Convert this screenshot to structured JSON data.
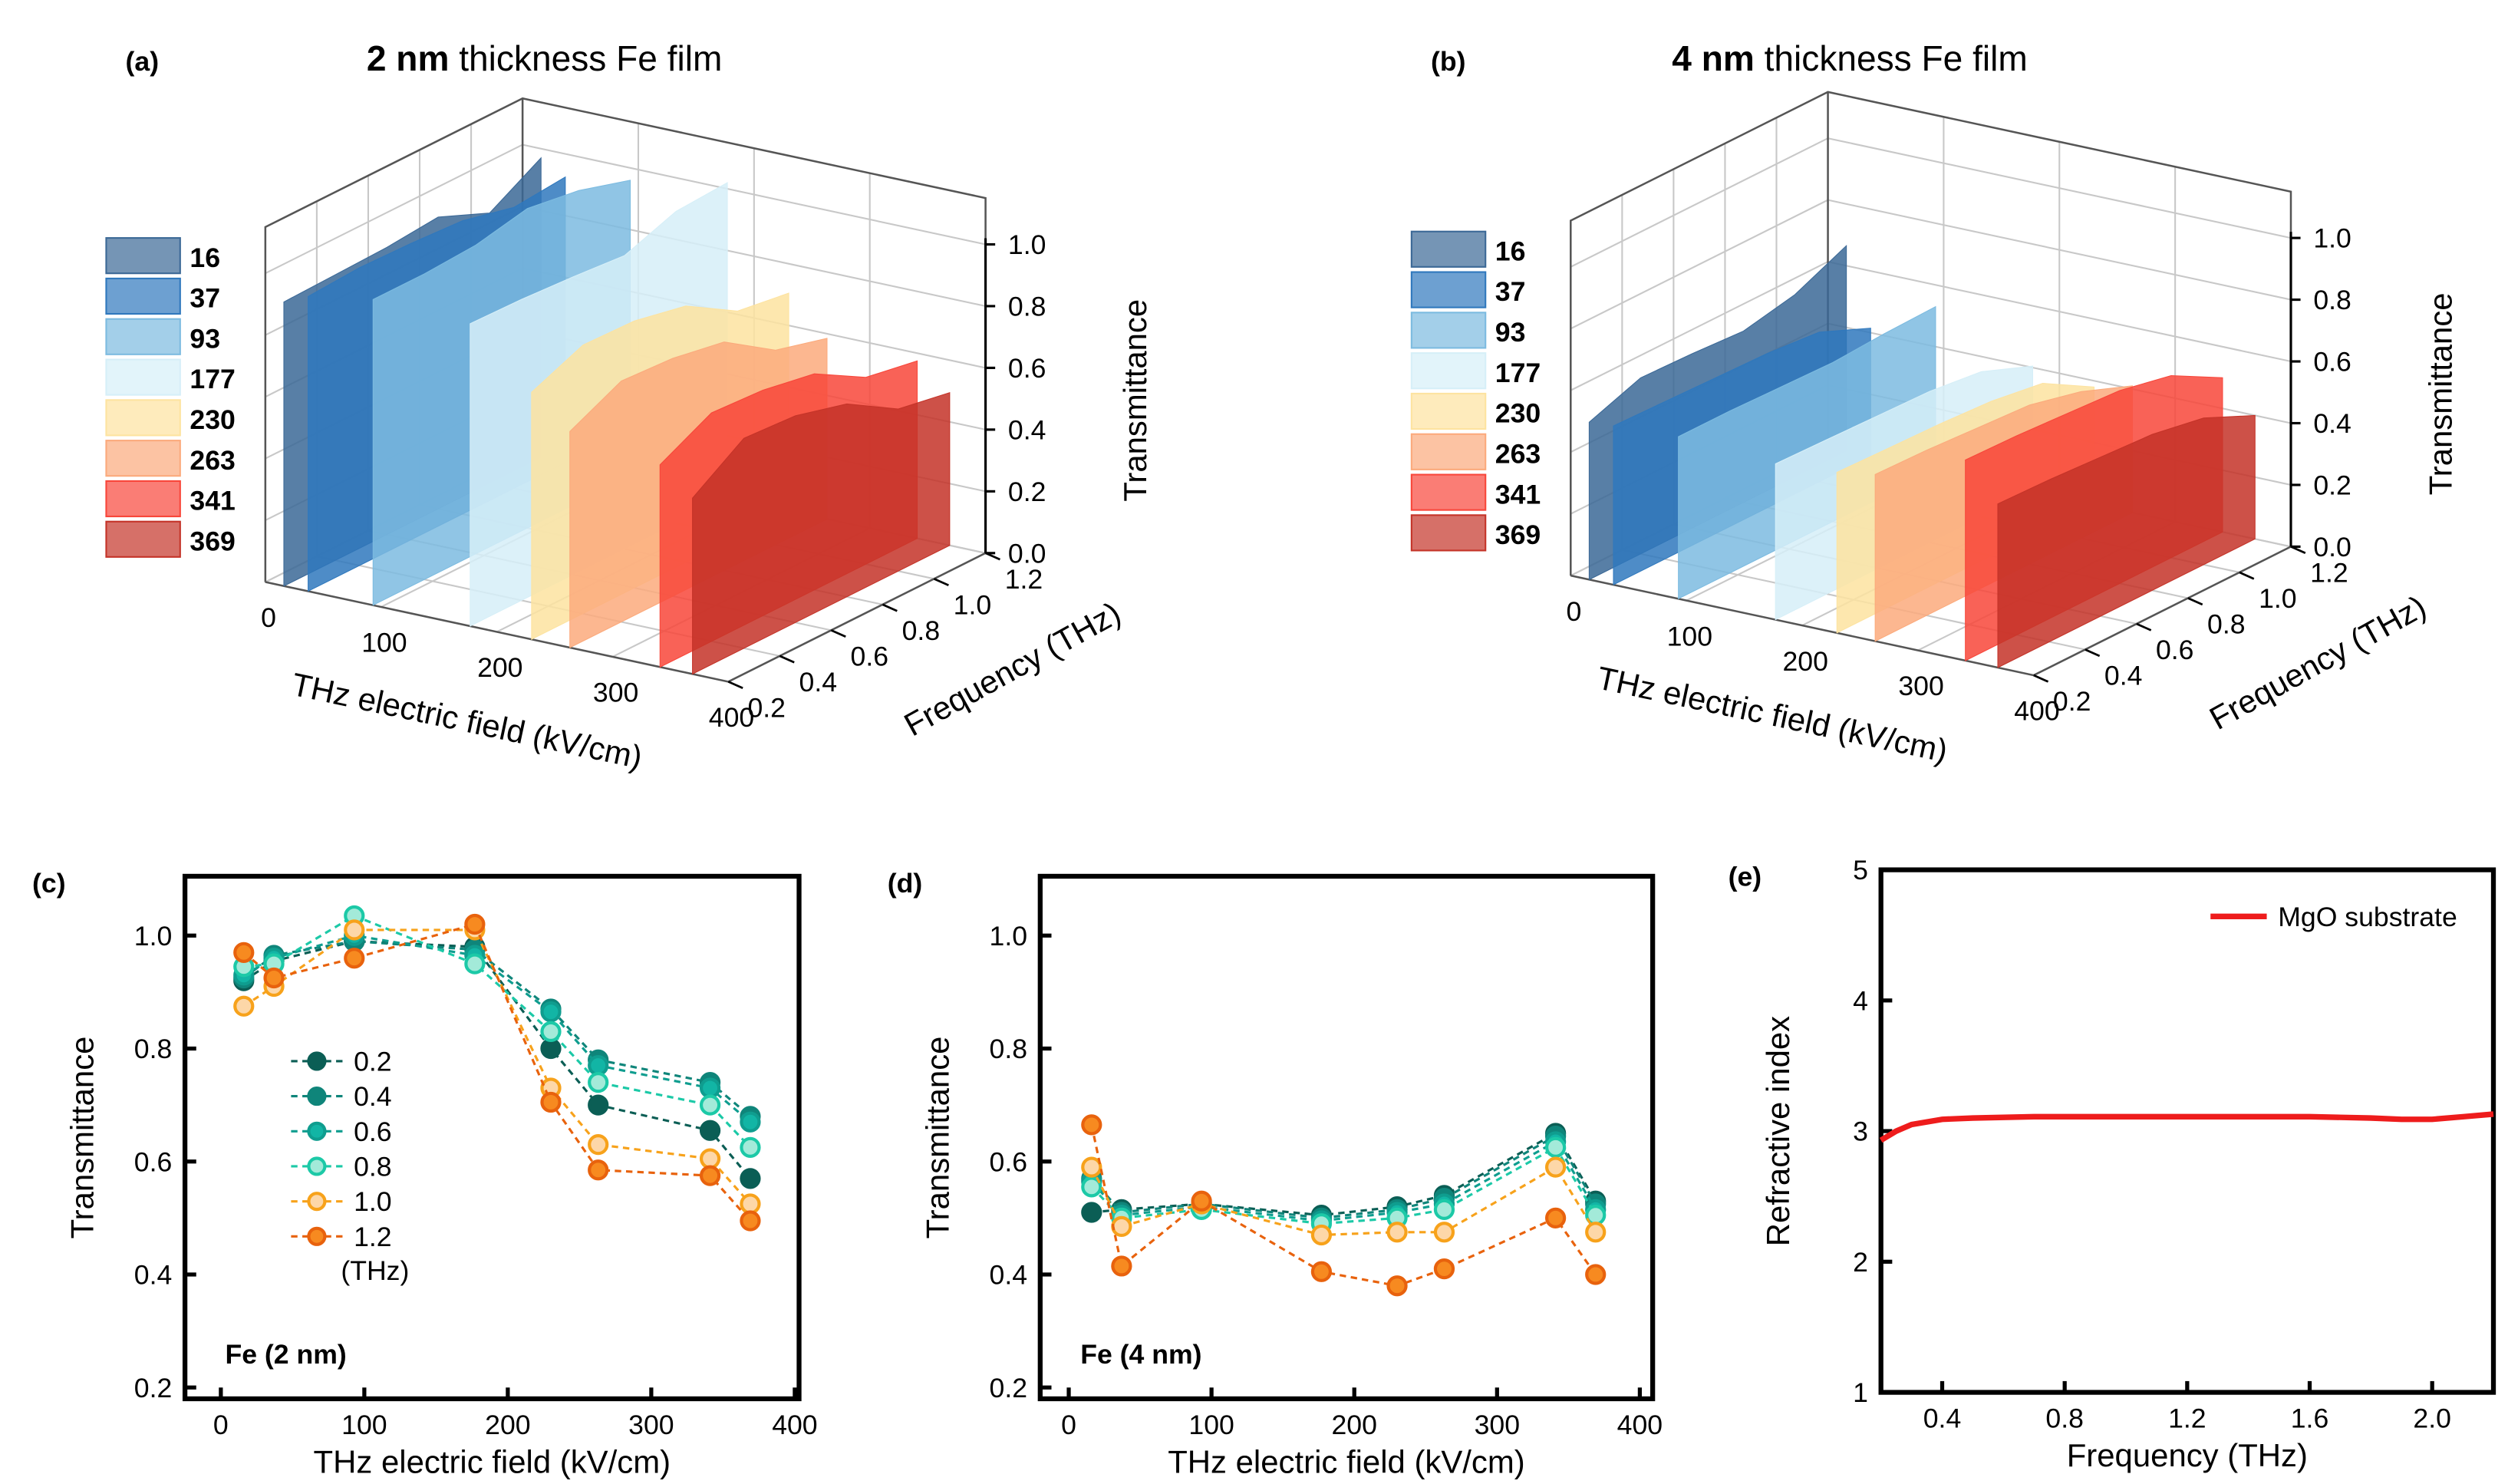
{
  "chart_data": [
    {
      "panel": "(a)",
      "type": "area3d",
      "title_bold": "2 nm",
      "title_rest": " thickness Fe film",
      "xlabel": "THz electric field (kV/cm)",
      "ylabel": "Frequency (THz)",
      "zlabel": "Transmittance",
      "xticks": [
        "0",
        "100",
        "200",
        "300",
        "400"
      ],
      "yticks": [
        "0.2",
        "0.4",
        "0.6",
        "0.8",
        "1.0",
        "1.2"
      ],
      "zticks": [
        "0.0",
        "0.2",
        "0.4",
        "0.6",
        "0.8",
        "1.0"
      ],
      "frequencies": [
        0.2,
        0.4,
        0.6,
        0.8,
        1.0,
        1.2
      ],
      "series": [
        {
          "name": "16",
          "color": "#3b6896",
          "values": [
            0.92,
            0.925,
            0.93,
            0.945,
            0.875,
            0.97
          ]
        },
        {
          "name": "37",
          "color": "#2f78bd",
          "values": [
            0.955,
            0.965,
            0.96,
            0.95,
            0.91,
            0.925
          ]
        },
        {
          "name": "93",
          "color": "#7cbbe0",
          "values": [
            0.99,
            0.99,
            1.0,
            1.035,
            1.01,
            0.96
          ]
        },
        {
          "name": "177",
          "color": "#d6eff8",
          "values": [
            0.98,
            0.975,
            0.965,
            0.95,
            1.01,
            1.02
          ]
        },
        {
          "name": "230",
          "color": "#fde3a0",
          "values": [
            0.8,
            0.87,
            0.865,
            0.83,
            0.73,
            0.705
          ]
        },
        {
          "name": "263",
          "color": "#fbaa7c",
          "values": [
            0.7,
            0.78,
            0.77,
            0.74,
            0.63,
            0.585
          ]
        },
        {
          "name": "341",
          "color": "#f8463a",
          "values": [
            0.655,
            0.74,
            0.73,
            0.7,
            0.605,
            0.575
          ]
        },
        {
          "name": "369",
          "color": "#c43328",
          "values": [
            0.57,
            0.68,
            0.67,
            0.625,
            0.525,
            0.495
          ]
        }
      ]
    },
    {
      "panel": "(b)",
      "type": "area3d",
      "title_bold": "4 nm",
      "title_rest": " thickness Fe film",
      "xlabel": "THz electric field (kV/cm)",
      "ylabel": "Frequency (THz)",
      "zlabel": "Transmittance",
      "xticks": [
        "0",
        "100",
        "200",
        "300",
        "400"
      ],
      "yticks": [
        "0.2",
        "0.4",
        "0.6",
        "0.8",
        "1.0",
        "1.2"
      ],
      "zticks": [
        "0.0",
        "0.2",
        "0.4",
        "0.6",
        "0.8",
        "1.0"
      ],
      "frequencies": [
        0.2,
        0.4,
        0.6,
        0.8,
        1.0,
        1.2
      ],
      "series": [
        {
          "name": "16",
          "color": "#3b6896",
          "values": [
            0.51,
            0.57,
            0.565,
            0.555,
            0.59,
            0.665
          ]
        },
        {
          "name": "37",
          "color": "#2f78bd",
          "values": [
            0.515,
            0.51,
            0.505,
            0.5,
            0.485,
            0.415
          ]
        },
        {
          "name": "93",
          "color": "#7cbbe0",
          "values": [
            0.525,
            0.525,
            0.52,
            0.515,
            0.525,
            0.53
          ]
        },
        {
          "name": "177",
          "color": "#d6eff8",
          "values": [
            0.505,
            0.5,
            0.495,
            0.49,
            0.47,
            0.405
          ]
        },
        {
          "name": "230",
          "color": "#fde3a0",
          "values": [
            0.52,
            0.515,
            0.51,
            0.5,
            0.475,
            0.38
          ]
        },
        {
          "name": "263",
          "color": "#fbaa7c",
          "values": [
            0.54,
            0.535,
            0.525,
            0.515,
            0.475,
            0.41
          ]
        },
        {
          "name": "341",
          "color": "#f8463a",
          "values": [
            0.65,
            0.645,
            0.635,
            0.625,
            0.59,
            0.5
          ]
        },
        {
          "name": "369",
          "color": "#c43328",
          "values": [
            0.53,
            0.525,
            0.515,
            0.505,
            0.475,
            0.4
          ]
        }
      ]
    },
    {
      "panel": "(c)",
      "type": "line",
      "annotation": "Fe (2 nm)",
      "xlabel": "THz electric field (kV/cm)",
      "ylabel": "Transmittance",
      "xlim": [
        -25,
        403
      ],
      "ylim": [
        0.18,
        1.105
      ],
      "xticks": [
        0,
        100,
        200,
        300,
        400
      ],
      "yticks": [
        0.2,
        0.4,
        0.6,
        0.8,
        1.0
      ],
      "legend_unit": "(THz)",
      "legend_position": "center-left",
      "x": [
        16,
        37,
        93,
        177,
        230,
        263,
        341,
        369
      ],
      "series": [
        {
          "name": "0.2",
          "fill": "#0b5e55",
          "stroke": "#0b5e55",
          "values": [
            0.92,
            0.955,
            0.99,
            0.98,
            0.8,
            0.7,
            0.655,
            0.57
          ]
        },
        {
          "name": "0.4",
          "fill": "#0f857a",
          "stroke": "#0f857a",
          "values": [
            0.925,
            0.965,
            0.99,
            0.975,
            0.87,
            0.78,
            0.74,
            0.68
          ]
        },
        {
          "name": "0.6",
          "fill": "#12b5a5",
          "stroke": "#0f9d8f",
          "values": [
            0.93,
            0.96,
            1.0,
            0.965,
            0.865,
            0.77,
            0.73,
            0.67
          ]
        },
        {
          "name": "0.8",
          "fill": "#a3ead9",
          "stroke": "#1cc9a7",
          "values": [
            0.945,
            0.95,
            1.035,
            0.95,
            0.83,
            0.74,
            0.7,
            0.625
          ]
        },
        {
          "name": "1.0",
          "fill": "#fdd7a8",
          "stroke": "#f7a21b",
          "values": [
            0.875,
            0.91,
            1.01,
            1.01,
            0.73,
            0.63,
            0.605,
            0.525
          ]
        },
        {
          "name": "1.2",
          "fill": "#f78a20",
          "stroke": "#e8620d",
          "values": [
            0.97,
            0.925,
            0.96,
            1.02,
            0.705,
            0.585,
            0.575,
            0.495
          ]
        }
      ]
    },
    {
      "panel": "(d)",
      "type": "line",
      "annotation": "Fe (4 nm)",
      "xlabel": "THz electric field (kV/cm)",
      "ylabel": "Transmittance",
      "xlim": [
        -20,
        409
      ],
      "ylim": [
        0.18,
        1.105
      ],
      "xticks": [
        0,
        100,
        200,
        300,
        400
      ],
      "yticks": [
        0.2,
        0.4,
        0.6,
        0.8,
        1.0
      ],
      "x": [
        16,
        37,
        93,
        177,
        230,
        263,
        341,
        369
      ],
      "series": [
        {
          "name": "0.2",
          "fill": "#0b5e55",
          "stroke": "#0b5e55",
          "values": [
            0.51,
            0.515,
            0.525,
            0.505,
            0.52,
            0.54,
            0.65,
            0.53
          ]
        },
        {
          "name": "0.4",
          "fill": "#0f857a",
          "stroke": "#0f857a",
          "values": [
            0.57,
            0.51,
            0.525,
            0.5,
            0.515,
            0.535,
            0.645,
            0.525
          ]
        },
        {
          "name": "0.6",
          "fill": "#12b5a5",
          "stroke": "#0f9d8f",
          "values": [
            0.565,
            0.505,
            0.52,
            0.495,
            0.51,
            0.525,
            0.635,
            0.515
          ]
        },
        {
          "name": "0.8",
          "fill": "#a3ead9",
          "stroke": "#1cc9a7",
          "values": [
            0.555,
            0.5,
            0.515,
            0.49,
            0.5,
            0.515,
            0.625,
            0.505
          ]
        },
        {
          "name": "1.0",
          "fill": "#fdd7a8",
          "stroke": "#f7a21b",
          "values": [
            0.59,
            0.485,
            0.525,
            0.47,
            0.475,
            0.475,
            0.59,
            0.475
          ]
        },
        {
          "name": "1.2",
          "fill": "#f78a20",
          "stroke": "#e8620d",
          "values": [
            0.665,
            0.415,
            0.53,
            0.405,
            0.38,
            0.41,
            0.5,
            0.4
          ]
        }
      ]
    },
    {
      "panel": "(e)",
      "type": "line",
      "xlabel": "Frequency (THz)",
      "ylabel": "Refractive index",
      "xlim": [
        0.2,
        2.2
      ],
      "ylim": [
        1,
        5
      ],
      "xticks": [
        0.4,
        0.8,
        1.2,
        1.6,
        2.0
      ],
      "yticks": [
        1,
        2,
        3,
        4,
        5
      ],
      "legend_position": "top-right",
      "series": [
        {
          "name": "MgO substrate",
          "color": "#ee1c1c",
          "x": [
            0.2,
            0.25,
            0.3,
            0.4,
            0.5,
            0.7,
            1.0,
            1.3,
            1.6,
            1.8,
            1.9,
            2.0,
            2.1,
            2.2
          ],
          "values": [
            2.93,
            3.0,
            3.05,
            3.09,
            3.1,
            3.11,
            3.11,
            3.11,
            3.11,
            3.1,
            3.09,
            3.09,
            3.11,
            3.13
          ]
        }
      ]
    }
  ]
}
